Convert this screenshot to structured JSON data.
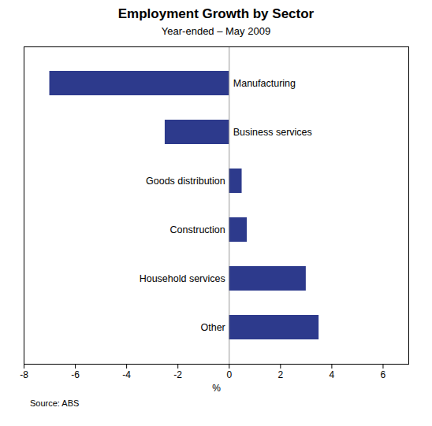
{
  "chart_data": {
    "type": "bar",
    "orientation": "horizontal",
    "title": "Employment Growth by Sector",
    "subtitle": "Year-ended – May 2009",
    "source": "Source: ABS",
    "categories": [
      "Manufacturing",
      "Business services",
      "Goods distribution",
      "Construction",
      "Household services",
      "Other"
    ],
    "values": [
      -7.0,
      -2.5,
      0.5,
      0.7,
      3.0,
      3.5
    ],
    "color": "#2d3a8c",
    "xlabel": "%",
    "xlim": [
      -8,
      7
    ],
    "xticks": [
      -8,
      -6,
      -4,
      -2,
      0,
      2,
      4,
      6
    ],
    "grid": false,
    "tick_labels": "x"
  }
}
